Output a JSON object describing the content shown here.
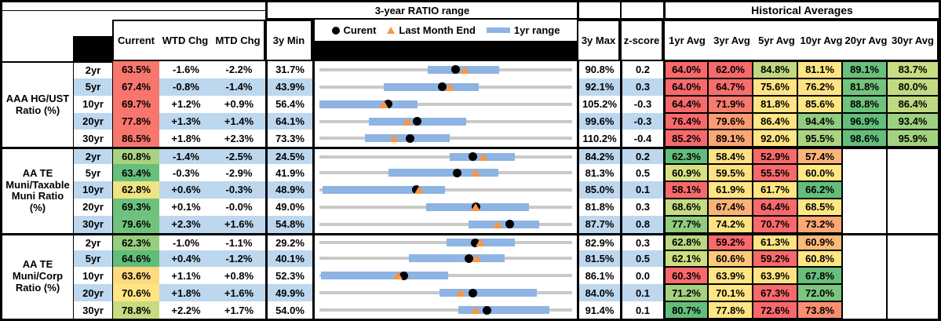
{
  "header": {
    "range_title": "3-year RATIO range",
    "hist_title": "Historical Averages",
    "col_current": "Current",
    "col_wtd": "WTD Chg",
    "col_mtd": "MTD Chg",
    "col_min": "3y Min",
    "col_max": "3y Max",
    "col_z": "z-score",
    "avg_cols": [
      "1yr Avg",
      "3yr Avg",
      "5yr Avg",
      "10yr Avg",
      "20yr Avg",
      "30yr Avg"
    ],
    "legend_current": "Curent",
    "legend_lme": "Last Month End",
    "legend_range": "1yr range"
  },
  "palette": {
    "row_band": "#BDD7EE",
    "range_bar": "#8DB4E2",
    "range_line": "#C9C9C9",
    "marker_current": "#000000",
    "marker_lme": "#F79646",
    "scale_red": "#F8696B",
    "scale_yellow": "#FFE583",
    "scale_green": "#63BE7B"
  },
  "chart_data": {
    "type": "table",
    "note": "Each row is a range plot in % : gray line spans 3y Min to 3y Max, blue bar is 1yr range (lo-hi), black dot = current, orange triangle = last month end (lme). Avg cells carry red-yellow-green conditional formatting colors.",
    "groups": [
      {
        "label": "AAA HG/UST\nRatio (%)",
        "rows": [
          {
            "t": "2yr",
            "cur": 63.5,
            "cc": "#F8766D",
            "wtd": "-1.6%",
            "mtd": "-2.2%",
            "min": 31.7,
            "max": 90.8,
            "z": "0.2",
            "lo": 57.1,
            "hi": 73.7,
            "lme": 65.7,
            "avgs": [
              {
                "v": "64.0%",
                "c": "#F8696B"
              },
              {
                "v": "62.0%",
                "c": "#F8696B"
              },
              {
                "v": "84.8%",
                "c": "#BFD981"
              },
              {
                "v": "81.1%",
                "c": "#FFE483"
              },
              {
                "v": "89.1%",
                "c": "#68C07C"
              },
              {
                "v": "83.7%",
                "c": "#C8DC82"
              }
            ]
          },
          {
            "t": "5yr",
            "cur": 67.4,
            "cc": "#F8766D",
            "wtd": "-0.8%",
            "mtd": "-1.4%",
            "min": 43.9,
            "max": 92.1,
            "z": "0.3",
            "lo": 56.1,
            "hi": 74.3,
            "lme": 68.8,
            "avgs": [
              {
                "v": "64.0%",
                "c": "#F8696B"
              },
              {
                "v": "64.7%",
                "c": "#F86E6C"
              },
              {
                "v": "75.6%",
                "c": "#FFE383"
              },
              {
                "v": "76.2%",
                "c": "#FFE283"
              },
              {
                "v": "81.8%",
                "c": "#73C37C"
              },
              {
                "v": "80.0%",
                "c": "#C1DA81"
              }
            ]
          },
          {
            "t": "10yr",
            "cur": 69.7,
            "cc": "#F8766D",
            "wtd": "+1.2%",
            "mtd": "+0.9%",
            "min": 56.4,
            "max": 105.2,
            "z": "-0.3",
            "lo": 56.4,
            "hi": 75.4,
            "lme": 68.8,
            "avgs": [
              {
                "v": "64.4%",
                "c": "#F8696B"
              },
              {
                "v": "71.9%",
                "c": "#F87B6E"
              },
              {
                "v": "81.8%",
                "c": "#FFE483"
              },
              {
                "v": "85.6%",
                "c": "#FFE683"
              },
              {
                "v": "88.8%",
                "c": "#6EC27C"
              },
              {
                "v": "86.4%",
                "c": "#BED981"
              }
            ]
          },
          {
            "t": "20yr",
            "cur": 77.8,
            "cc": "#F8766D",
            "wtd": "+1.3%",
            "mtd": "+1.4%",
            "min": 64.1,
            "max": 99.6,
            "z": "-0.3",
            "lo": 71.1,
            "hi": 84.7,
            "lme": 76.4,
            "avgs": [
              {
                "v": "76.4%",
                "c": "#F8696B"
              },
              {
                "v": "79.6%",
                "c": "#FA9C73"
              },
              {
                "v": "86.4%",
                "c": "#FFE583"
              },
              {
                "v": "94.4%",
                "c": "#90CD7E"
              },
              {
                "v": "96.9%",
                "c": "#63BE7B"
              },
              {
                "v": "93.4%",
                "c": "#9DD07F"
              }
            ]
          },
          {
            "t": "30yr",
            "cur": 86.5,
            "cc": "#F8766D",
            "wtd": "+1.8%",
            "mtd": "+2.3%",
            "min": 73.3,
            "max": 110.2,
            "z": "-0.4",
            "lo": 80.0,
            "hi": 92.3,
            "lme": 84.2,
            "avgs": [
              {
                "v": "85.2%",
                "c": "#F8696B"
              },
              {
                "v": "89.1%",
                "c": "#FAA675"
              },
              {
                "v": "92.0%",
                "c": "#FFE583"
              },
              {
                "v": "95.5%",
                "c": "#AAD480"
              },
              {
                "v": "98.6%",
                "c": "#63BE7B"
              },
              {
                "v": "95.9%",
                "c": "#A3D27F"
              }
            ]
          }
        ]
      },
      {
        "label": "AA TE\nMuni/Taxable\nMuni Ratio\n(%)",
        "rows": [
          {
            "t": "2yr",
            "cur": 60.8,
            "cc": "#A9D380",
            "wtd": "-1.4%",
            "mtd": "-2.5%",
            "min": 24.5,
            "max": 84.2,
            "z": "0.2",
            "lo": 55.2,
            "hi": 70.6,
            "lme": 63.3,
            "avgs": [
              {
                "v": "62.3%",
                "c": "#63BE7B"
              },
              {
                "v": "58.4%",
                "c": "#FFE283"
              },
              {
                "v": "52.9%",
                "c": "#F8696B"
              },
              {
                "v": "57.4%",
                "c": "#FCB377"
              },
              null,
              null
            ]
          },
          {
            "t": "5yr",
            "cur": 63.4,
            "cc": "#67BF7B",
            "wtd": "-0.3%",
            "mtd": "-2.9%",
            "min": 41.9,
            "max": 81.3,
            "z": "0.5",
            "lo": 52.7,
            "hi": 69.8,
            "lme": 66.3,
            "avgs": [
              {
                "v": "60.9%",
                "c": "#D9E083"
              },
              {
                "v": "59.5%",
                "c": "#FFE083"
              },
              {
                "v": "55.5%",
                "c": "#F8696B"
              },
              {
                "v": "60.0%",
                "c": "#FFE883"
              },
              null,
              null
            ]
          },
          {
            "t": "10yr",
            "cur": 62.8,
            "cc": "#EEE482",
            "wtd": "+0.6%",
            "mtd": "-0.3%",
            "min": 48.9,
            "max": 85.0,
            "z": "0.1",
            "lo": 49.3,
            "hi": 66.8,
            "lme": 63.1,
            "avgs": [
              {
                "v": "58.1%",
                "c": "#F8696B"
              },
              {
                "v": "61.9%",
                "c": "#FFE583"
              },
              {
                "v": "61.7%",
                "c": "#FFE483"
              },
              {
                "v": "66.2%",
                "c": "#63BE7B"
              },
              null,
              null
            ]
          },
          {
            "t": "20yr",
            "cur": 69.3,
            "cc": "#6DC17C",
            "wtd": "+0.1%",
            "mtd": "-0.0%",
            "min": 49.0,
            "max": 81.8,
            "z": "0.3",
            "lo": 62.9,
            "hi": 76.2,
            "lme": 69.3,
            "avgs": [
              {
                "v": "68.6%",
                "c": "#C4DB82"
              },
              {
                "v": "67.4%",
                "c": "#FBB277"
              },
              {
                "v": "64.4%",
                "c": "#F8696B"
              },
              {
                "v": "68.5%",
                "c": "#FFE783"
              },
              null,
              null
            ]
          },
          {
            "t": "30yr",
            "cur": 79.6,
            "cc": "#70C27C",
            "wtd": "+2.3%",
            "mtd": "+1.6%",
            "min": 54.8,
            "max": 87.7,
            "z": "0.8",
            "lo": 74.2,
            "hi": 83.4,
            "lme": 78.0,
            "avgs": [
              {
                "v": "77.7%",
                "c": "#8FCD7E"
              },
              {
                "v": "74.2%",
                "c": "#FFE383"
              },
              {
                "v": "70.7%",
                "c": "#F8696B"
              },
              {
                "v": "73.2%",
                "c": "#FBA875"
              },
              null,
              null
            ]
          }
        ]
      },
      {
        "label": "AA TE\nMuni/Corp\nRatio (%)",
        "rows": [
          {
            "t": "2yr",
            "cur": 62.3,
            "cc": "#96CE7E",
            "wtd": "-1.0%",
            "mtd": "-1.1%",
            "min": 29.2,
            "max": 82.9,
            "z": "0.3",
            "lo": 56.3,
            "hi": 70.7,
            "lme": 63.4,
            "avgs": [
              {
                "v": "62.8%",
                "c": "#BCD881"
              },
              {
                "v": "59.2%",
                "c": "#F8696B"
              },
              {
                "v": "61.3%",
                "c": "#FFE383"
              },
              {
                "v": "60.9%",
                "c": "#FCBA78"
              },
              null,
              null
            ]
          },
          {
            "t": "5yr",
            "cur": 64.6,
            "cc": "#60BD7A",
            "wtd": "+0.4%",
            "mtd": "-1.2%",
            "min": 40.1,
            "max": 81.5,
            "z": "0.5",
            "lo": 54.8,
            "hi": 70.4,
            "lme": 65.8,
            "avgs": [
              {
                "v": "62.1%",
                "c": "#CDDD82"
              },
              {
                "v": "60.6%",
                "c": "#FCC87A"
              },
              {
                "v": "59.2%",
                "c": "#F8696B"
              },
              {
                "v": "60.8%",
                "c": "#FFE583"
              },
              null,
              null
            ]
          },
          {
            "t": "10yr",
            "cur": 63.6,
            "cc": "#FFD980",
            "wtd": "+1.1%",
            "mtd": "+0.8%",
            "min": 52.3,
            "max": 86.1,
            "z": "0.0",
            "lo": 52.5,
            "hi": 69.5,
            "lme": 62.8,
            "avgs": [
              {
                "v": "60.3%",
                "c": "#F8696B"
              },
              {
                "v": "63.9%",
                "c": "#FFE583"
              },
              {
                "v": "63.9%",
                "c": "#FFE383"
              },
              {
                "v": "67.8%",
                "c": "#67BF7B"
              },
              null,
              null
            ]
          },
          {
            "t": "20yr",
            "cur": 70.6,
            "cc": "#FFE583",
            "wtd": "+1.8%",
            "mtd": "+1.6%",
            "min": 49.9,
            "max": 84.0,
            "z": "0.1",
            "lo": 66.1,
            "hi": 79.2,
            "lme": 69.0,
            "avgs": [
              {
                "v": "71.2%",
                "c": "#A3D180"
              },
              {
                "v": "70.1%",
                "c": "#FFE583"
              },
              {
                "v": "67.3%",
                "c": "#F8696B"
              },
              {
                "v": "72.0%",
                "c": "#7CC67D"
              },
              null,
              null
            ]
          },
          {
            "t": "30yr",
            "cur": 78.8,
            "cc": "#C7DB82",
            "wtd": "+2.2%",
            "mtd": "+1.7%",
            "min": 54.0,
            "max": 91.4,
            "z": "0.1",
            "lo": 74.6,
            "hi": 88.0,
            "lme": 77.1,
            "avgs": [
              {
                "v": "80.7%",
                "c": "#63BE7B"
              },
              {
                "v": "77.8%",
                "c": "#FFE583"
              },
              {
                "v": "72.6%",
                "c": "#F8696B"
              },
              {
                "v": "73.8%",
                "c": "#F98F70"
              },
              null,
              null
            ]
          }
        ]
      }
    ]
  }
}
